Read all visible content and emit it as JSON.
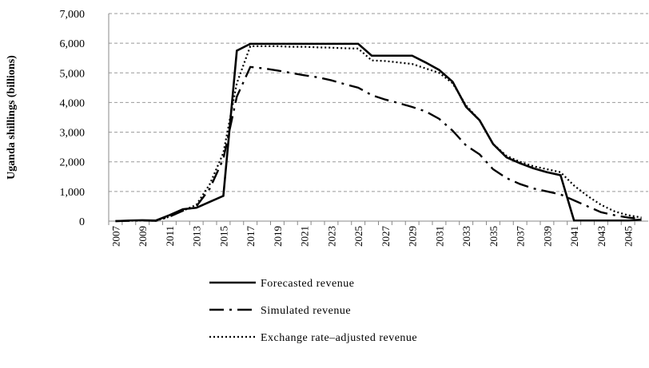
{
  "chart_data": {
    "type": "line",
    "y_label": "Uganda shillings (billions)",
    "categories": [
      "2007",
      null,
      "2009",
      null,
      "2011",
      null,
      "2013",
      null,
      "2015",
      null,
      "2017",
      null,
      "2019",
      null,
      "2021",
      null,
      "2023",
      null,
      "2025",
      null,
      "2027",
      null,
      "2029",
      null,
      "2031",
      null,
      "2033",
      null,
      "2035",
      null,
      "2037",
      null,
      "2039",
      null,
      "2041",
      null,
      "2043",
      null,
      "2045",
      null
    ],
    "series": [
      {
        "name": "Forecasted revenue",
        "color": "#000000",
        "style": "solid",
        "values": [
          0,
          20,
          30,
          20,
          200,
          400,
          450,
          650,
          850,
          5750,
          5980,
          5980,
          5980,
          5980,
          5980,
          5980,
          5980,
          5980,
          5980,
          5580,
          5580,
          5580,
          5580,
          5350,
          5100,
          4700,
          3850,
          3400,
          2600,
          2150,
          1950,
          1780,
          1650,
          1550,
          20,
          20,
          20,
          20,
          20,
          50
        ]
      },
      {
        "name": "Simulated revenue",
        "color": "#000000",
        "style": "dashdot",
        "values": [
          0,
          10,
          20,
          10,
          150,
          350,
          500,
          1100,
          2100,
          4200,
          5200,
          5150,
          5080,
          5000,
          4920,
          4850,
          4750,
          4620,
          4500,
          4250,
          4100,
          3980,
          3850,
          3700,
          3450,
          3050,
          2550,
          2250,
          1750,
          1450,
          1250,
          1100,
          1000,
          900,
          700,
          500,
          300,
          200,
          120,
          80
        ]
      },
      {
        "name": "Exchange rate–adjusted revenue",
        "color": "#000000",
        "style": "dotted",
        "values": [
          0,
          10,
          20,
          10,
          150,
          350,
          550,
          1250,
          2300,
          4650,
          5900,
          5900,
          5900,
          5880,
          5880,
          5860,
          5850,
          5830,
          5820,
          5420,
          5400,
          5350,
          5300,
          5150,
          5000,
          4650,
          3900,
          3400,
          2600,
          2200,
          2000,
          1850,
          1750,
          1650,
          1200,
          850,
          550,
          330,
          200,
          120
        ]
      }
    ],
    "ylim": [
      0,
      7000
    ],
    "yticks": [
      0,
      {
        "value": 1000,
        "label": "1,000"
      },
      {
        "value": 2000,
        "label": "2,000"
      },
      {
        "value": 3000,
        "label": "3,000"
      },
      {
        "value": 4000,
        "label": "4,000"
      },
      {
        "value": 5000,
        "label": "5,000"
      },
      {
        "value": 6000,
        "label": "6,000"
      },
      {
        "value": 7000,
        "label": "7,000"
      }
    ],
    "grid": true,
    "legend": "bottom"
  }
}
